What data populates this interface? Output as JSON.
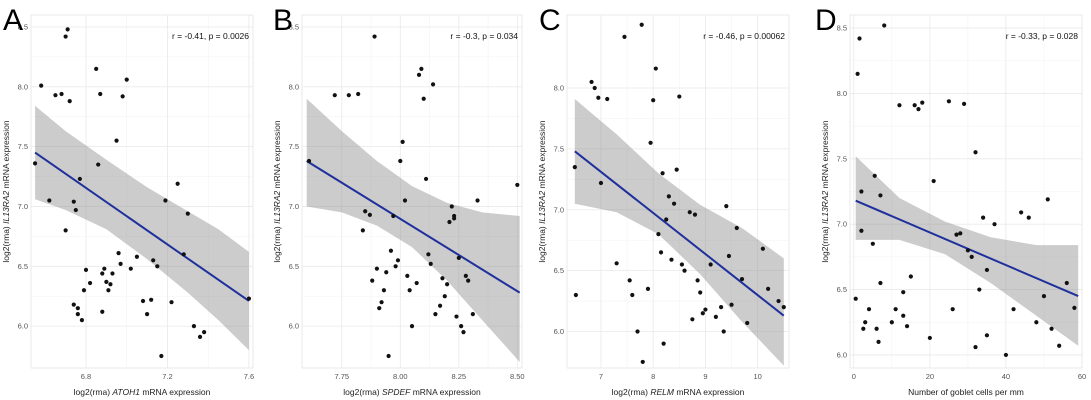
{
  "chart_data": [
    {
      "panel": "A",
      "type": "scatter",
      "annotation": "r = -0.41, p = 0.0026",
      "xlabel_prefix": "log2(rma) ",
      "xlabel_gene": "ATOH1",
      "xlabel_suffix": " mRNA expression",
      "ylabel_prefix": "log2(rma) ",
      "ylabel_gene": "IL13RA2",
      "ylabel_suffix": " mRNA expression",
      "xlim": [
        6.53,
        7.62
      ],
      "ylim": [
        5.65,
        8.6
      ],
      "xticks": [
        6.8,
        7.2,
        7.6
      ],
      "xtick_labels": [
        "6.8",
        "7.2",
        "7.6"
      ],
      "yticks": [
        6.0,
        6.5,
        7.0,
        7.5,
        8.0,
        8.5
      ],
      "ytick_labels": [
        "6.0",
        "6.5",
        "7.0",
        "7.5",
        "8.0",
        "8.5"
      ],
      "fit": [
        [
          6.55,
          7.45
        ],
        [
          7.6,
          6.21
        ]
      ],
      "band": {
        "x": [
          6.55,
          6.7,
          6.9,
          7.1,
          7.3,
          7.45,
          7.6
        ],
        "lower": [
          7.06,
          6.97,
          6.81,
          6.56,
          6.28,
          6.05,
          5.8
        ],
        "upper": [
          7.84,
          7.63,
          7.39,
          7.16,
          6.96,
          6.81,
          6.62
        ]
      },
      "points": [
        [
          6.55,
          7.36
        ],
        [
          6.58,
          8.01
        ],
        [
          6.62,
          7.05
        ],
        [
          6.65,
          7.93
        ],
        [
          6.68,
          7.94
        ],
        [
          6.7,
          8.42
        ],
        [
          6.71,
          8.48
        ],
        [
          6.72,
          7.88
        ],
        [
          6.74,
          6.18
        ],
        [
          6.74,
          7.04
        ],
        [
          6.75,
          6.97
        ],
        [
          6.76,
          6.1
        ],
        [
          6.76,
          6.15
        ],
        [
          6.77,
          7.23
        ],
        [
          6.78,
          6.05
        ],
        [
          6.79,
          6.3
        ],
        [
          6.7,
          6.8
        ],
        [
          6.8,
          6.47
        ],
        [
          6.82,
          6.36
        ],
        [
          6.85,
          8.15
        ],
        [
          6.86,
          7.35
        ],
        [
          6.87,
          7.94
        ],
        [
          6.88,
          6.44
        ],
        [
          6.89,
          6.48
        ],
        [
          6.9,
          6.37
        ],
        [
          6.91,
          6.3
        ],
        [
          6.92,
          6.35
        ],
        [
          6.93,
          6.44
        ],
        [
          6.95,
          7.55
        ],
        [
          6.96,
          6.61
        ],
        [
          6.97,
          6.52
        ],
        [
          6.98,
          7.92
        ],
        [
          7.0,
          8.06
        ],
        [
          7.02,
          6.48
        ],
        [
          7.05,
          6.58
        ],
        [
          7.08,
          6.21
        ],
        [
          7.1,
          6.1
        ],
        [
          7.12,
          6.22
        ],
        [
          7.13,
          6.55
        ],
        [
          7.15,
          6.5
        ],
        [
          7.17,
          5.75
        ],
        [
          7.19,
          7.05
        ],
        [
          7.22,
          6.2
        ],
        [
          7.25,
          7.19
        ],
        [
          7.28,
          6.6
        ],
        [
          7.3,
          6.94
        ],
        [
          7.33,
          6.0
        ],
        [
          7.36,
          5.91
        ],
        [
          7.38,
          5.95
        ],
        [
          7.6,
          6.23
        ],
        [
          6.88,
          6.12
        ]
      ]
    },
    {
      "panel": "B",
      "type": "scatter",
      "annotation": "r = -0.3, p = 0.034",
      "xlabel_prefix": "log2(rma) ",
      "xlabel_gene": "SPDEF",
      "xlabel_suffix": " mRNA expression",
      "ylabel_prefix": "log2(rma) ",
      "ylabel_gene": "IL13RA2",
      "ylabel_suffix": " mRNA expression",
      "xlim": [
        7.58,
        8.52
      ],
      "ylim": [
        5.65,
        8.6
      ],
      "xticks": [
        7.75,
        8.0,
        8.25,
        8.5
      ],
      "xtick_labels": [
        "7.75",
        "8.00",
        "8.25",
        "8.50"
      ],
      "yticks": [
        6.0,
        6.5,
        7.0,
        7.5,
        8.0,
        8.5
      ],
      "ytick_labels": [
        "6.0",
        "6.5",
        "7.0",
        "7.5",
        "8.0",
        "8.5"
      ],
      "fit": [
        [
          7.6,
          7.38
        ],
        [
          8.51,
          6.28
        ]
      ],
      "band": {
        "x": [
          7.6,
          7.75,
          7.9,
          8.05,
          8.2,
          8.35,
          8.51
        ],
        "lower": [
          7.0,
          6.95,
          6.84,
          6.66,
          6.38,
          6.05,
          5.7
        ],
        "upper": [
          7.9,
          7.63,
          7.38,
          7.17,
          7.03,
          6.95,
          6.92
        ]
      },
      "points": [
        [
          7.61,
          7.38
        ],
        [
          7.72,
          7.93
        ],
        [
          7.78,
          7.93
        ],
        [
          7.82,
          7.94
        ],
        [
          7.84,
          6.8
        ],
        [
          7.85,
          6.96
        ],
        [
          7.87,
          6.93
        ],
        [
          7.88,
          6.38
        ],
        [
          7.89,
          8.42
        ],
        [
          7.9,
          6.48
        ],
        [
          7.91,
          6.15
        ],
        [
          7.92,
          6.2
        ],
        [
          7.93,
          6.3
        ],
        [
          7.94,
          6.45
        ],
        [
          7.95,
          5.75
        ],
        [
          7.96,
          6.63
        ],
        [
          7.97,
          6.92
        ],
        [
          7.98,
          6.5
        ],
        [
          7.99,
          6.55
        ],
        [
          8.0,
          7.38
        ],
        [
          8.01,
          7.54
        ],
        [
          8.02,
          7.05
        ],
        [
          8.03,
          6.42
        ],
        [
          8.04,
          6.3
        ],
        [
          8.05,
          6.0
        ],
        [
          8.07,
          6.36
        ],
        [
          8.08,
          8.1
        ],
        [
          8.09,
          8.15
        ],
        [
          8.1,
          7.9
        ],
        [
          8.11,
          7.23
        ],
        [
          8.12,
          6.6
        ],
        [
          8.13,
          6.52
        ],
        [
          8.14,
          8.02
        ],
        [
          8.15,
          6.1
        ],
        [
          8.17,
          6.17
        ],
        [
          8.18,
          6.4
        ],
        [
          8.19,
          6.25
        ],
        [
          8.2,
          6.35
        ],
        [
          8.21,
          6.87
        ],
        [
          8.22,
          7.0
        ],
        [
          8.23,
          6.92
        ],
        [
          8.23,
          6.9
        ],
        [
          8.24,
          6.08
        ],
        [
          8.25,
          6.57
        ],
        [
          8.26,
          6.0
        ],
        [
          8.27,
          5.95
        ],
        [
          8.28,
          6.42
        ],
        [
          8.29,
          6.38
        ],
        [
          8.31,
          6.1
        ],
        [
          8.33,
          7.05
        ],
        [
          8.5,
          7.18
        ]
      ]
    },
    {
      "panel": "C",
      "type": "scatter",
      "annotation": "r = -0.46, p = 0.00062",
      "xlabel_prefix": "log2(rma) ",
      "xlabel_gene": "RELM",
      "xlabel_suffix": " mRNA expression",
      "ylabel_prefix": "log2(rma) ",
      "ylabel_gene": "IL13RA2",
      "ylabel_suffix": " mRNA expression",
      "xlim": [
        6.35,
        10.6
      ],
      "ylim": [
        5.7,
        8.6
      ],
      "xticks": [
        7,
        8,
        9,
        10
      ],
      "xtick_labels": [
        "7",
        "8",
        "9",
        "10"
      ],
      "yticks": [
        6.0,
        6.5,
        7.0,
        7.5,
        8.0
      ],
      "ytick_labels": [
        "6.0",
        "6.5",
        "7.0",
        "7.5",
        "8.0"
      ],
      "fit": [
        [
          6.5,
          7.48
        ],
        [
          10.5,
          6.13
        ]
      ],
      "band": {
        "x": [
          6.5,
          7.3,
          8.1,
          8.9,
          9.7,
          10.5
        ],
        "lower": [
          7.05,
          6.98,
          6.8,
          6.47,
          6.08,
          5.72
        ],
        "upper": [
          7.91,
          7.62,
          7.3,
          7.04,
          6.85,
          6.6
        ]
      },
      "points": [
        [
          6.5,
          7.35
        ],
        [
          6.52,
          6.3
        ],
        [
          6.82,
          8.05
        ],
        [
          6.88,
          8.0
        ],
        [
          6.95,
          7.92
        ],
        [
          7.0,
          7.22
        ],
        [
          7.12,
          7.91
        ],
        [
          7.3,
          6.56
        ],
        [
          7.45,
          8.42
        ],
        [
          7.55,
          6.42
        ],
        [
          7.6,
          6.3
        ],
        [
          7.8,
          5.75
        ],
        [
          7.7,
          6.0
        ],
        [
          7.9,
          6.35
        ],
        [
          7.95,
          7.55
        ],
        [
          8.0,
          7.9
        ],
        [
          8.05,
          8.16
        ],
        [
          8.1,
          6.8
        ],
        [
          8.15,
          6.65
        ],
        [
          8.18,
          7.3
        ],
        [
          8.2,
          5.9
        ],
        [
          8.25,
          6.92
        ],
        [
          8.3,
          7.11
        ],
        [
          8.35,
          6.59
        ],
        [
          8.4,
          7.05
        ],
        [
          8.45,
          7.33
        ],
        [
          8.5,
          7.93
        ],
        [
          8.55,
          6.55
        ],
        [
          8.6,
          6.5
        ],
        [
          8.7,
          6.98
        ],
        [
          8.75,
          6.1
        ],
        [
          8.8,
          6.96
        ],
        [
          8.85,
          6.42
        ],
        [
          8.9,
          6.32
        ],
        [
          8.95,
          6.15
        ],
        [
          9.0,
          6.18
        ],
        [
          9.1,
          6.55
        ],
        [
          9.2,
          6.12
        ],
        [
          9.3,
          6.2
        ],
        [
          9.35,
          6.0
        ],
        [
          9.4,
          7.03
        ],
        [
          9.45,
          6.62
        ],
        [
          9.5,
          6.22
        ],
        [
          9.6,
          6.85
        ],
        [
          9.7,
          6.43
        ],
        [
          9.8,
          6.07
        ],
        [
          10.1,
          6.68
        ],
        [
          10.2,
          6.35
        ],
        [
          10.4,
          6.25
        ],
        [
          10.5,
          6.2
        ],
        [
          7.78,
          8.52
        ]
      ]
    },
    {
      "panel": "D",
      "type": "scatter",
      "annotation": "r = -0.33, p = 0.028",
      "xlabel_prefix": "",
      "xlabel_gene": "",
      "xlabel_suffix": "Number of goblet cells per mm",
      "ylabel_prefix": "log2(rma) ",
      "ylabel_gene": "IL13RA2",
      "ylabel_suffix": " mRNA expression",
      "xlim": [
        -1,
        60
      ],
      "ylim": [
        5.9,
        8.6
      ],
      "xticks": [
        0,
        20,
        40,
        60
      ],
      "xtick_labels": [
        "0",
        "20",
        "40",
        "60"
      ],
      "yticks": [
        6.0,
        6.5,
        7.0,
        7.5,
        8.0,
        8.5
      ],
      "ytick_labels": [
        "6.0",
        "6.5",
        "7.0",
        "7.5",
        "8.0",
        "8.5"
      ],
      "fit": [
        [
          0.5,
          7.18
        ],
        [
          59,
          6.45
        ]
      ],
      "band": {
        "x": [
          0.5,
          12,
          24,
          36,
          48,
          59
        ],
        "lower": [
          6.88,
          6.88,
          6.77,
          6.55,
          6.3,
          6.07
        ],
        "upper": [
          7.52,
          7.2,
          7.02,
          6.9,
          6.84,
          6.84
        ]
      },
      "points": [
        [
          0.5,
          6.43
        ],
        [
          1,
          8.15
        ],
        [
          1.5,
          8.42
        ],
        [
          2,
          7.25
        ],
        [
          2,
          6.95
        ],
        [
          2.5,
          6.2
        ],
        [
          3,
          6.25
        ],
        [
          4,
          6.35
        ],
        [
          5,
          6.85
        ],
        [
          5.5,
          7.37
        ],
        [
          6,
          6.2
        ],
        [
          6.5,
          6.1
        ],
        [
          7,
          7.22
        ],
        [
          7,
          6.55
        ],
        [
          8,
          8.52
        ],
        [
          10,
          6.25
        ],
        [
          11,
          6.35
        ],
        [
          12,
          7.91
        ],
        [
          13,
          6.48
        ],
        [
          13,
          6.3
        ],
        [
          14,
          6.22
        ],
        [
          15,
          6.6
        ],
        [
          16,
          7.91
        ],
        [
          17,
          7.88
        ],
        [
          18,
          7.93
        ],
        [
          20,
          6.13
        ],
        [
          21,
          7.33
        ],
        [
          25,
          7.94
        ],
        [
          26,
          6.35
        ],
        [
          27,
          6.92
        ],
        [
          28,
          6.93
        ],
        [
          29,
          7.92
        ],
        [
          30,
          6.8
        ],
        [
          31,
          6.75
        ],
        [
          32,
          7.55
        ],
        [
          32,
          6.06
        ],
        [
          33,
          6.5
        ],
        [
          34,
          7.05
        ],
        [
          35,
          6.65
        ],
        [
          35,
          6.15
        ],
        [
          37,
          7.0
        ],
        [
          40,
          6.0
        ],
        [
          42,
          6.35
        ],
        [
          44,
          7.09
        ],
        [
          46,
          7.05
        ],
        [
          48,
          6.25
        ],
        [
          50,
          6.45
        ],
        [
          51,
          7.19
        ],
        [
          52,
          6.2
        ],
        [
          54,
          6.07
        ],
        [
          56,
          6.55
        ],
        [
          58,
          6.36
        ]
      ]
    }
  ]
}
